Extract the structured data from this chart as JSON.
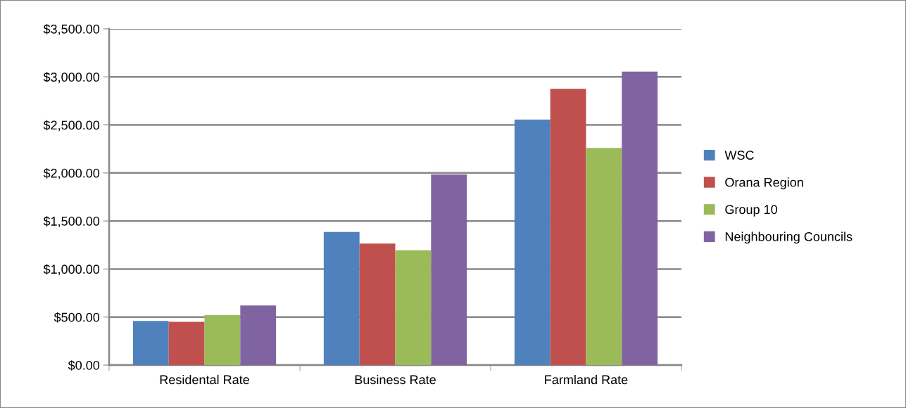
{
  "chart_data": {
    "type": "bar",
    "categories": [
      "Residental Rate",
      "Business Rate",
      "Farmland Rate"
    ],
    "series": [
      {
        "name": "WSC",
        "color": "#4f81bd",
        "values": [
          460,
          1385,
          2555
        ]
      },
      {
        "name": "Orana Region",
        "color": "#c0504d",
        "values": [
          450,
          1265,
          2875
        ]
      },
      {
        "name": "Group 10",
        "color": "#9bbb59",
        "values": [
          520,
          1195,
          2260
        ]
      },
      {
        "name": "Neighbouring Councils",
        "color": "#8064a2",
        "values": [
          620,
          1985,
          3055
        ]
      }
    ],
    "ylim": [
      0,
      3500
    ],
    "yticks": [
      {
        "value": 0,
        "label": "$0.00"
      },
      {
        "value": 500,
        "label": "$500.00"
      },
      {
        "value": 1000,
        "label": "$1,000.00"
      },
      {
        "value": 1500,
        "label": "$1,500.00"
      },
      {
        "value": 2000,
        "label": "$2,000.00"
      },
      {
        "value": 2500,
        "label": "$2,500.00"
      },
      {
        "value": 3000,
        "label": "$3,000.00"
      },
      {
        "value": 3500,
        "label": "$3,500.00"
      }
    ],
    "grid": "y",
    "legend": "right"
  }
}
